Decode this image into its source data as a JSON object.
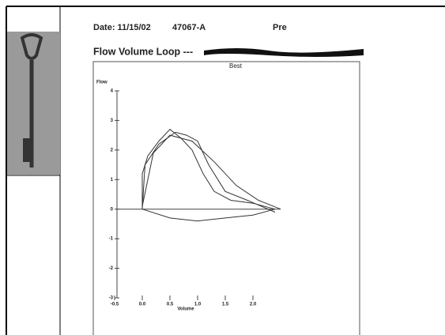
{
  "document": {
    "date": "Date: 11/15/02",
    "id": "47067-A",
    "phase": "Pre",
    "title": "Flow Volume Loop ---"
  },
  "chart_data": {
    "type": "line",
    "annotation": "Best",
    "ylabel": "Flow",
    "xlabel": "Volume",
    "xlim": [
      -0.5,
      2.5
    ],
    "ylim": [
      -3,
      4
    ],
    "xticks": [
      -0.5,
      {
        "value": 0,
        "label": "0.0"
      },
      0.5,
      {
        "value": 1,
        "label": "1.0"
      },
      1.5,
      {
        "value": 2,
        "label": "2.0"
      }
    ],
    "yticks": [
      -3,
      -2,
      -1,
      0,
      1,
      2,
      3,
      4
    ],
    "series": [
      {
        "color": "#333",
        "x": [
          0,
          0,
          0.1,
          0.3,
          0.5,
          0.7,
          0.9,
          1.1,
          1.3,
          1.6,
          2.0,
          2.4
        ],
        "values": [
          0,
          1.2,
          1.8,
          2.3,
          2.7,
          2.4,
          2.0,
          1.2,
          0.6,
          0.3,
          0.2,
          0
        ]
      },
      {
        "color": "#333",
        "x": [
          0,
          0.05,
          0.3,
          0.6,
          0.8,
          1.0,
          1.2,
          1.5,
          1.9,
          2.4
        ],
        "values": [
          0,
          1.5,
          2.2,
          2.6,
          2.5,
          2.3,
          1.5,
          0.6,
          0.3,
          -0.1
        ]
      },
      {
        "color": "#333",
        "x": [
          0,
          0.2,
          0.5,
          0.9,
          1.3,
          1.7,
          2.1,
          2.5
        ],
        "values": [
          0.1,
          1.9,
          2.5,
          2.3,
          1.6,
          0.8,
          0.3,
          0
        ]
      },
      {
        "color": "#333",
        "x": [
          0,
          0.5,
          1.0,
          1.5,
          2.0,
          2.4
        ],
        "values": [
          0,
          -0.3,
          -0.4,
          -0.3,
          -0.2,
          0
        ]
      }
    ]
  }
}
